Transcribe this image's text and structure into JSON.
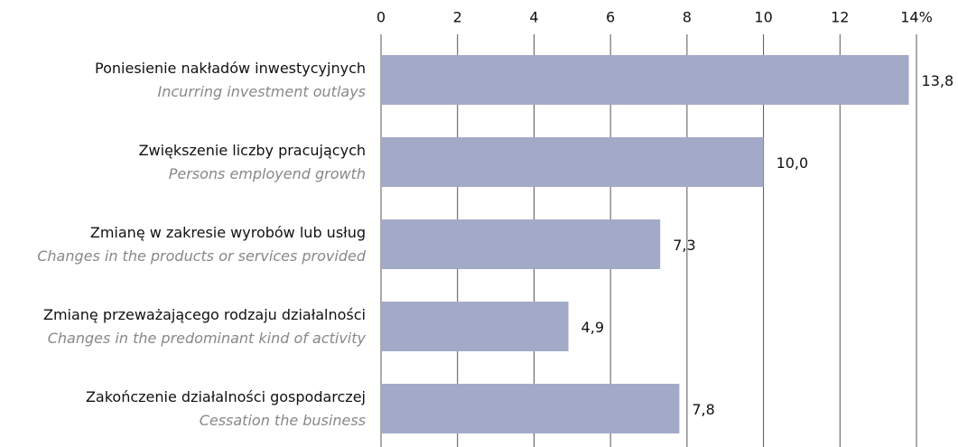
{
  "chart_data": {
    "type": "bar",
    "orientation": "horizontal",
    "categories": [
      "Poniesienie nakładów inwestycyjnych",
      "Zwiększenie liczby pracujących",
      "Zmianę w zakresie wyrobów lub usług",
      "Zmianę przeważającego rodzaju działalności",
      "Zakończenie działalności gospodarczej"
    ],
    "category_subtitles": [
      "Incurring investment outlays",
      "Persons employend growth",
      "Changes in the products or services provided",
      "Changes in the predominant kind of activity",
      "Cessation the business"
    ],
    "values": [
      13.8,
      10.0,
      7.3,
      4.9,
      7.8
    ],
    "value_labels": [
      "13,8",
      "10,0",
      "7,3",
      "4,9",
      "7,8"
    ],
    "color": "#a3aac8",
    "xlim": [
      0,
      14
    ],
    "xticks": [
      0,
      2,
      4,
      6,
      8,
      10,
      12,
      {
        "value": 14,
        "label": "14%"
      }
    ],
    "grid": true
  }
}
